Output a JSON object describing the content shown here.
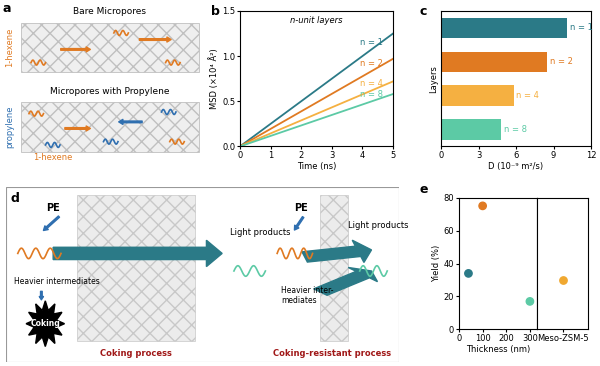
{
  "panel_a": {
    "panel": "a",
    "top_title": "Bare Micropores",
    "top_molecule": "1-hexene",
    "bottom_title": "Micropores with Propylene",
    "bottom_molecules": [
      "propylene",
      "1-hexene"
    ]
  },
  "chart_data": [
    {
      "panel": "b",
      "type": "line",
      "inset_text": "n-unit layers",
      "x_label": "Time (ns)",
      "y_label": "MSD (×10⁴ Å²)",
      "x": [
        0,
        5
      ],
      "xlim": [
        0,
        5
      ],
      "xticks": [
        0,
        1,
        2,
        3,
        4,
        5
      ],
      "ylim": [
        0,
        1.5
      ],
      "yticks": [
        {
          "value": 0,
          "label": "0.0"
        },
        {
          "value": 0.5,
          "label": "0.5"
        },
        {
          "value": 1,
          "label": "1.0"
        },
        {
          "value": 1.5,
          "label": "1.5"
        }
      ],
      "series": [
        {
          "name": "n = 1",
          "color": "#2b7a87",
          "values": [
            0,
            1.25
          ]
        },
        {
          "name": "n = 2",
          "color": "#e07a22",
          "values": [
            0,
            0.97
          ]
        },
        {
          "name": "n = 4",
          "color": "#f5b041",
          "values": [
            0,
            0.72
          ]
        },
        {
          "name": "n = 8",
          "color": "#5ccaa5",
          "values": [
            0,
            0.58
          ]
        }
      ]
    },
    {
      "panel": "c",
      "type": "bar",
      "orientation": "horizontal",
      "tick_labels": "x",
      "x_label": "D (10⁻⁹ m²/s)",
      "y_label": "Layers",
      "categories": [
        "n = 1",
        "n = 2",
        "n = 4",
        "n = 8"
      ],
      "values": [
        10.1,
        8.5,
        5.8,
        4.8
      ],
      "colors": [
        "#2b7a87",
        "#e07a22",
        "#f5b041",
        "#5ccaa5"
      ],
      "xlim": [
        0,
        12
      ],
      "xticks": [
        0,
        3,
        6,
        9,
        12
      ]
    },
    {
      "panel": "e",
      "type": "scatter",
      "x_label": "Thickness (nm)",
      "y_label": "Yield (%)",
      "x": [
        40,
        100,
        300
      ],
      "values": [
        34,
        75,
        17
      ],
      "colors": [
        "#2b7a87",
        "#e07a22",
        "#5ccaa5"
      ],
      "xlim": [
        0,
        330
      ],
      "xticks": [
        0,
        100,
        200,
        300
      ],
      "ylim": [
        0,
        80
      ],
      "yticks": [
        0,
        20,
        40,
        60,
        80
      ],
      "reference_sample": {
        "categories": [
          "Meso-ZSM-5"
        ],
        "values": [
          30
        ],
        "colors": [
          "#f0a830"
        ]
      }
    }
  ],
  "panel_d": {
    "panel": "d",
    "left": {
      "feed": "PE",
      "intermediates": "Heavier intermediates",
      "coke": "Coking",
      "products": "Light products",
      "caption": "Coking process"
    },
    "right": {
      "feed": "PE",
      "intermediates": "Heavier inter-\nmediates",
      "products": "Light products",
      "caption": "Coking-resistant process"
    }
  }
}
